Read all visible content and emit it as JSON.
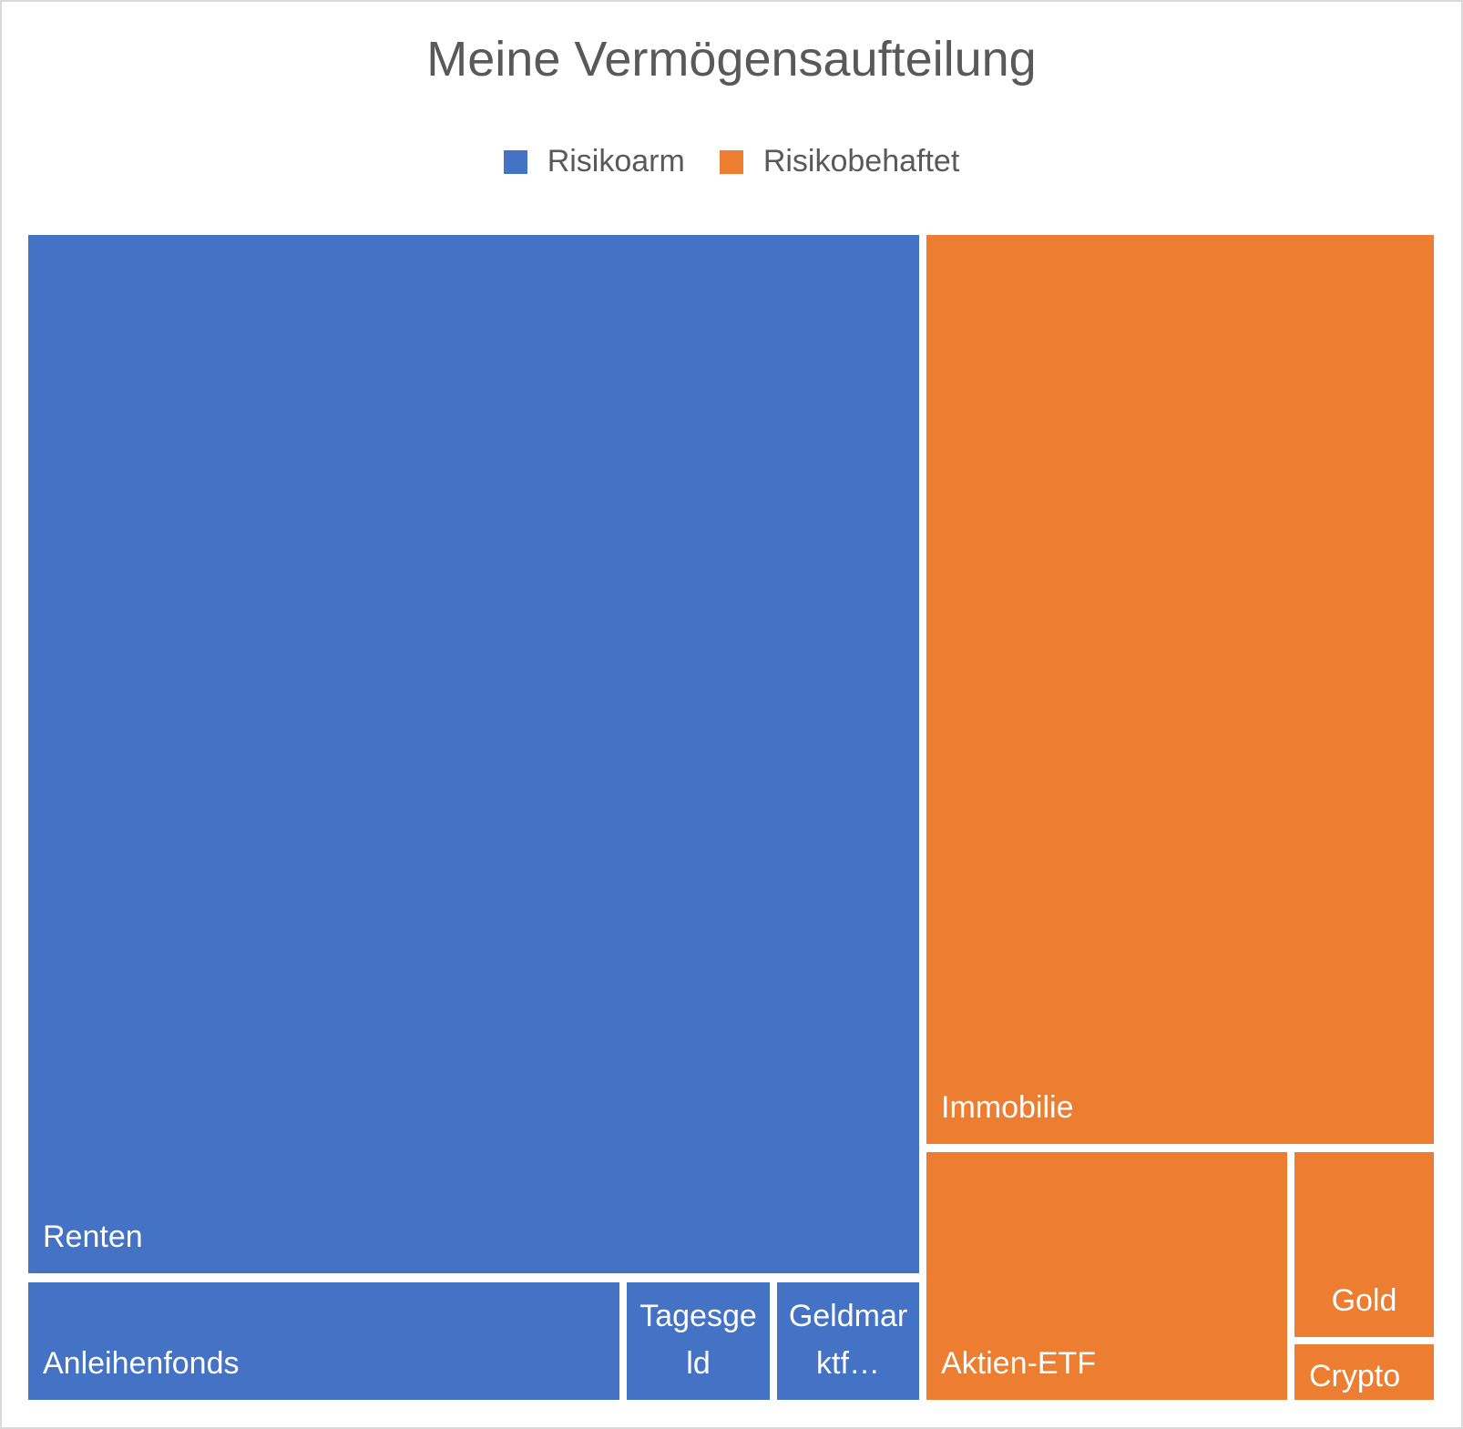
{
  "chart_data": {
    "type": "treemap",
    "title": "Meine Vermögensaufteilung",
    "legend": {
      "placement": "top",
      "entries": [
        "Risikoarm",
        "Risikobehaftet"
      ]
    },
    "colors": {
      "Risikoarm": "#4472C4",
      "Risikobehaftet": "#ED7D31"
    },
    "series": [
      {
        "name": "Risikoarm",
        "items": [
          {
            "label": "Renten",
            "value": 1115
          },
          {
            "label": "Anleihenfonds",
            "value": 84
          },
          {
            "label": "Tagesgeld",
            "value": 20
          },
          {
            "label": "Geldmarktf…",
            "value": 20
          }
        ]
      },
      {
        "name": "Risikobehaftet",
        "items": [
          {
            "label": "Immobilie",
            "value": 556
          },
          {
            "label": "Aktien-ETF",
            "value": 108
          },
          {
            "label": "Gold",
            "value": 31
          },
          {
            "label": "Crypto",
            "value": 9
          }
        ]
      }
    ]
  }
}
